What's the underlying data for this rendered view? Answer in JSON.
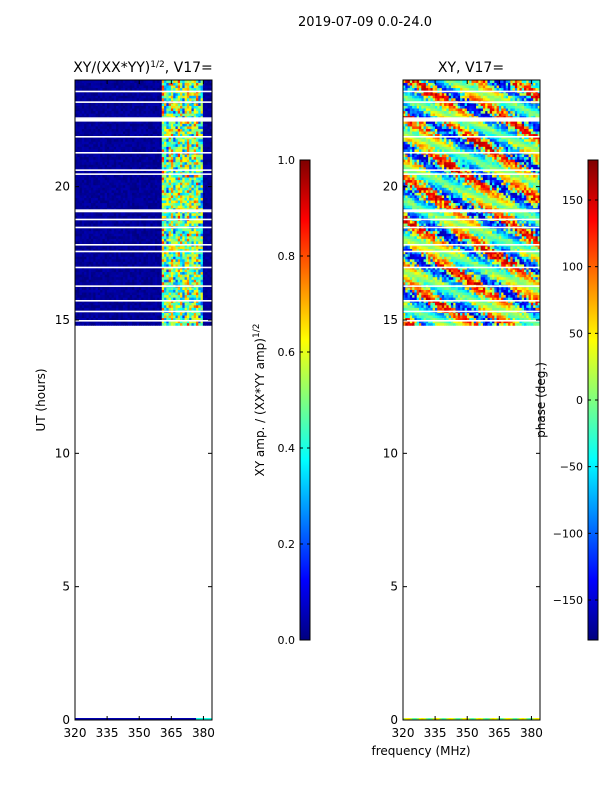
{
  "suptitle": "2019-07-09 0.0-24.0",
  "xlabel_shared": "frequency (MHz)",
  "chart_data": [
    {
      "type": "heatmap",
      "title_main": "XY/(XX*YY)",
      "title_exp": "1/2",
      "title_suffix": ", V17=",
      "xlabel": "",
      "ylabel": "UT (hours)",
      "xlim": [
        320,
        384
      ],
      "ylim": [
        0,
        24
      ],
      "x_ticks": [
        "320",
        "335",
        "350",
        "365",
        "380"
      ],
      "y_ticks": [
        "0",
        "5",
        "10",
        "15",
        "20"
      ],
      "data_range_ut": [
        14.8,
        24.0
      ],
      "signal_band_mhz": [
        361,
        380
      ],
      "colorbar": {
        "label_main": "XY amp. / (XX*YY amp)",
        "label_exp": "1/2",
        "range": [
          0.0,
          1.0
        ],
        "ticks": [
          "0.0",
          "0.2",
          "0.4",
          "0.6",
          "0.8",
          "1.0"
        ]
      }
    },
    {
      "type": "heatmap",
      "title": "XY, V17=",
      "xlabel": "frequency (MHz)",
      "ylabel": "",
      "xlim": [
        320,
        384
      ],
      "ylim": [
        0,
        24
      ],
      "x_ticks": [
        "320",
        "335",
        "350",
        "365",
        "380"
      ],
      "y_ticks": [
        "0",
        "5",
        "10",
        "15",
        "20"
      ],
      "data_range_ut": [
        14.8,
        24.0
      ],
      "colorbar": {
        "label": "phase (deg.)",
        "range": [
          -180,
          180
        ],
        "ticks": [
          "-150",
          "-100",
          "-50",
          "0",
          "50",
          "100",
          "150"
        ]
      }
    }
  ],
  "colors": {
    "jet": [
      "#00007f",
      "#0000ff",
      "#007fff",
      "#00ffff",
      "#7fff7f",
      "#ffff00",
      "#ff7f00",
      "#ff0000",
      "#7f0000"
    ]
  }
}
